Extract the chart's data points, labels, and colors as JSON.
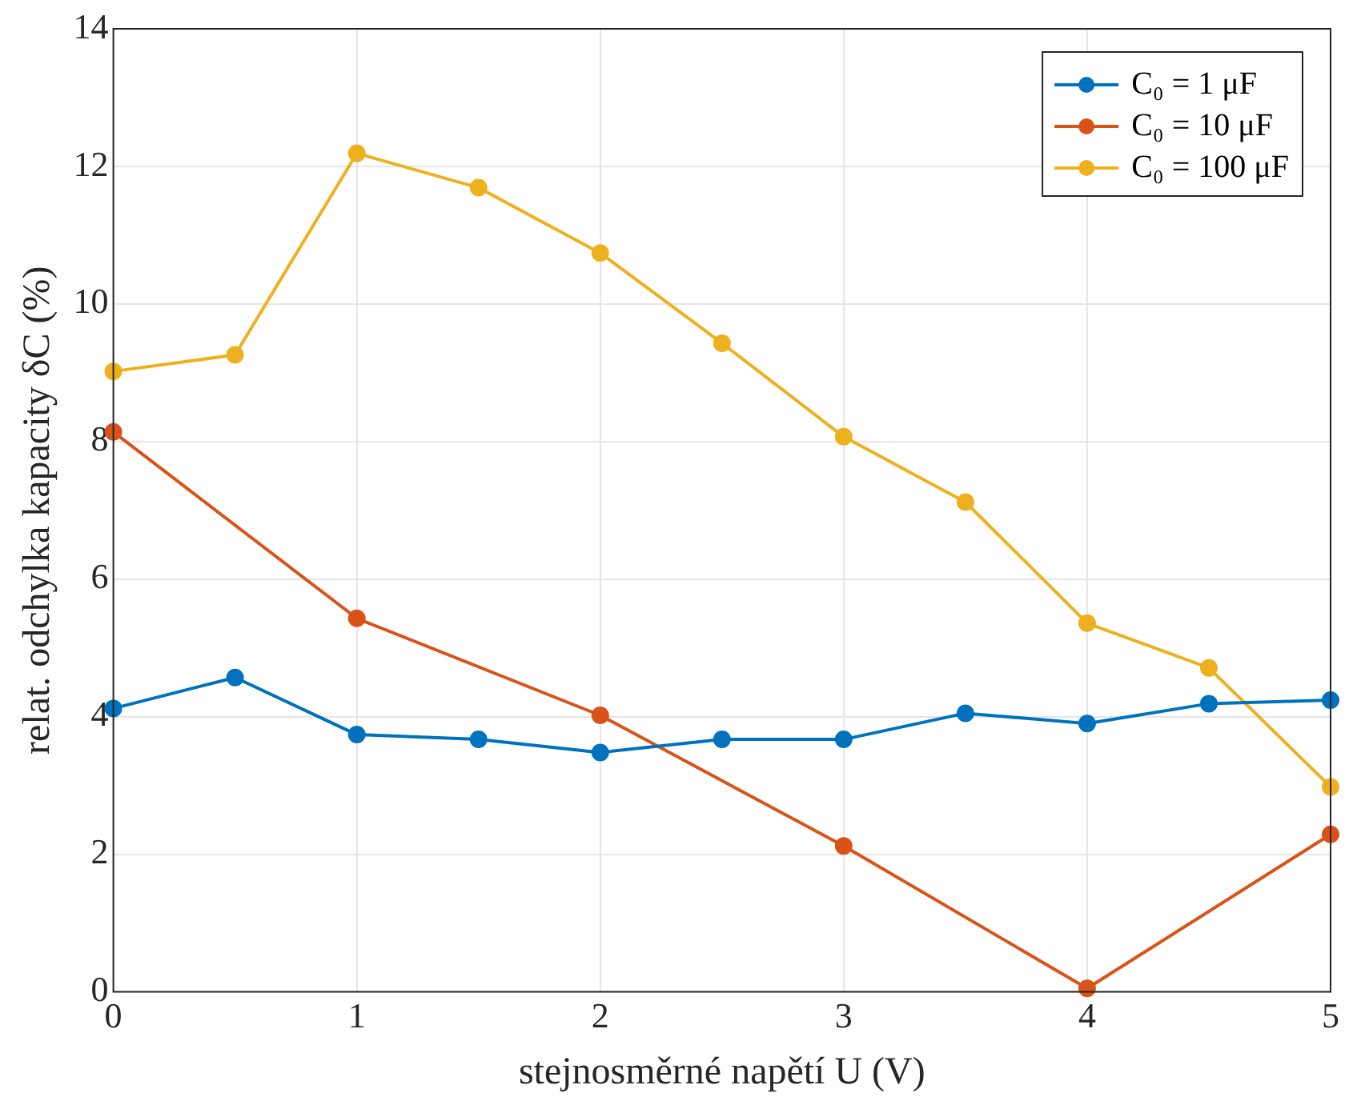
{
  "chart_data": {
    "type": "line",
    "xlabel": "stejnosměrné napětí U (V)",
    "ylabel": "relat. odchylka kapacity δC (%)",
    "xlim": [
      0,
      5
    ],
    "xticks": [
      0,
      1,
      2,
      3,
      4,
      5
    ],
    "ylim": [
      0,
      14
    ],
    "yticks": [
      0,
      2,
      4,
      6,
      8,
      10,
      12,
      14
    ],
    "grid": true,
    "legend": "top right",
    "marker": "circle",
    "line_style": "solid",
    "series": [
      {
        "name": "C₀ = 1 μF",
        "color": "#0072bd",
        "x": [
          0,
          0.5,
          1,
          1.5,
          2,
          2.5,
          3,
          3.5,
          4,
          4.5,
          5
        ],
        "values": [
          4.12,
          4.57,
          3.74,
          3.67,
          3.48,
          3.67,
          3.67,
          4.05,
          3.9,
          4.19,
          4.24
        ]
      },
      {
        "name": "C₀ = 10 μF",
        "color": "#d95319",
        "x": [
          0,
          1,
          2,
          3,
          4,
          5
        ],
        "values": [
          8.14,
          5.43,
          4.02,
          2.12,
          0.05,
          2.29
        ]
      },
      {
        "name": "C₀ = 100 μF",
        "color": "#edb120",
        "x": [
          0,
          0.5,
          1,
          1.5,
          2,
          2.5,
          3,
          3.5,
          4,
          4.5,
          5
        ],
        "values": [
          9.02,
          9.26,
          12.19,
          11.69,
          10.74,
          9.43,
          8.07,
          7.12,
          5.36,
          4.71,
          2.98
        ]
      }
    ]
  }
}
